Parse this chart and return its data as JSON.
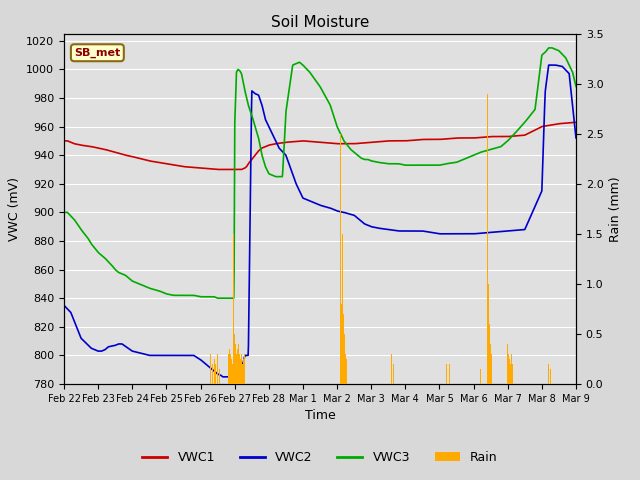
{
  "title": "Soil Moisture",
  "xlabel": "Time",
  "ylabel_left": "VWC (mV)",
  "ylabel_right": "Rain (mm)",
  "station_label": "SB_met",
  "ylim_left": [
    780,
    1025
  ],
  "ylim_right": [
    0.0,
    3.5
  ],
  "yticks_left": [
    780,
    800,
    820,
    840,
    860,
    880,
    900,
    920,
    940,
    960,
    980,
    1000,
    1020
  ],
  "yticks_right": [
    0.0,
    0.5,
    1.0,
    1.5,
    2.0,
    2.5,
    3.0,
    3.5
  ],
  "fig_bg_color": "#d8d8d8",
  "plot_bg_color": "#e0e0e0",
  "vwc1_color": "#cc0000",
  "vwc2_color": "#0000cc",
  "vwc3_color": "#00aa00",
  "rain_color": "#ffaa00",
  "legend_labels": [
    "VWC1",
    "VWC2",
    "VWC3",
    "Rain"
  ],
  "xtick_labels": [
    "Feb 22",
    "Feb 23",
    "Feb 24",
    "Feb 25",
    "Feb 26",
    "Feb 27",
    "Feb 28",
    "Mar 1",
    "Mar 2",
    "Mar 3",
    "Mar 4",
    "Mar 5",
    "Mar 6",
    "Mar 7",
    "Mar 8",
    "Mar 9"
  ],
  "grid_color": "#ffffff",
  "linewidth": 1.2
}
